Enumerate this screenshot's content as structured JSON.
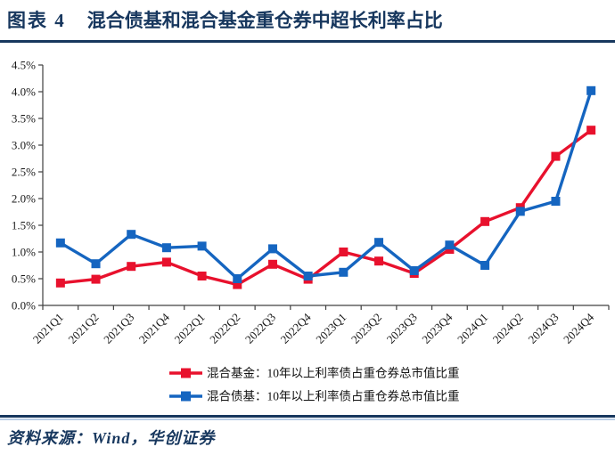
{
  "header": {
    "fig_label": "图表 4",
    "title": "混合债基和混合基金重仓券中超长利率占比"
  },
  "footer": {
    "source": "资料来源：Wind，华创证券"
  },
  "colors": {
    "accent_navy": "#17375E",
    "rule_light": "#B9CDE5",
    "series_red": "#E8112D",
    "series_blue": "#1565C0",
    "axis": "#404040",
    "tick_text": "#1a1a1a"
  },
  "chart_data": {
    "type": "line",
    "marker": "square",
    "grid": false,
    "legend_position": "bottom",
    "title": "",
    "xlabel": "",
    "ylabel": "",
    "ylim": [
      0,
      4.5
    ],
    "ytick_step": 0.5,
    "ytick_suffix": "%",
    "categories": [
      "2021Q1",
      "2021Q2",
      "2021Q3",
      "2021Q4",
      "2022Q1",
      "2022Q2",
      "2022Q3",
      "2022Q4",
      "2023Q1",
      "2023Q2",
      "2023Q3",
      "2023Q4",
      "2024Q1",
      "2024Q2",
      "2024Q3",
      "2024Q4"
    ],
    "series": [
      {
        "name": "混合基金：10年以上利率债占重仓券总市值比重",
        "color_key": "series_red",
        "values": [
          0.42,
          0.49,
          0.73,
          0.81,
          0.55,
          0.39,
          0.77,
          0.49,
          1.0,
          0.83,
          0.6,
          1.05,
          1.57,
          1.83,
          2.79,
          3.28
        ]
      },
      {
        "name": "混合债基：10年以上利率债占重仓券总市值比重",
        "color_key": "series_blue",
        "values": [
          1.17,
          0.78,
          1.33,
          1.08,
          1.11,
          0.5,
          1.06,
          0.55,
          0.62,
          1.18,
          0.65,
          1.13,
          0.75,
          1.76,
          1.95,
          4.02
        ]
      }
    ]
  }
}
